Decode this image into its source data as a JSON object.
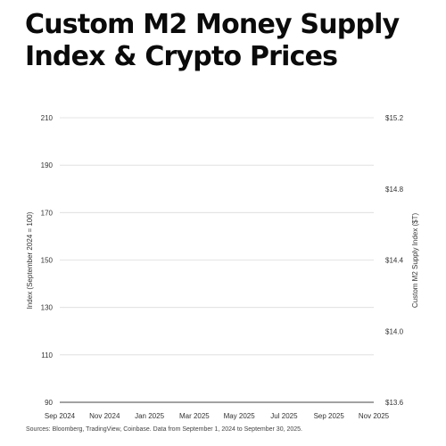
{
  "title_line1": "Custom M2 Money Supply",
  "title_line2": "Index & Crypto Prices",
  "source": "Sources: Bloomberg, TradingView, Coinbase. Data from September 1, 2024 to September 30, 2025.",
  "chart_data": {
    "type": "line",
    "title": "Custom M2 Money Supply Index & Crypto Prices",
    "ylabel": "Index (September 2024 = 100)",
    "ylabel_right": "Custom M2 Supply Index ($T)",
    "ylim": [
      90,
      210
    ],
    "ylim_right": [
      13.6,
      15.2
    ],
    "yticks": [
      "210",
      "190",
      "170",
      "150",
      "130",
      "110",
      "90"
    ],
    "yticks_right": [
      "$15.2",
      "$14.8",
      "$14.4",
      "$14.0",
      "$13.6"
    ],
    "categories": [
      "Sep 2024",
      "Nov 2024",
      "Jan 2025",
      "Mar 2025",
      "May 2025",
      "Jul 2025",
      "Sep 2025",
      "Nov 2025"
    ],
    "grid": true,
    "series": []
  }
}
